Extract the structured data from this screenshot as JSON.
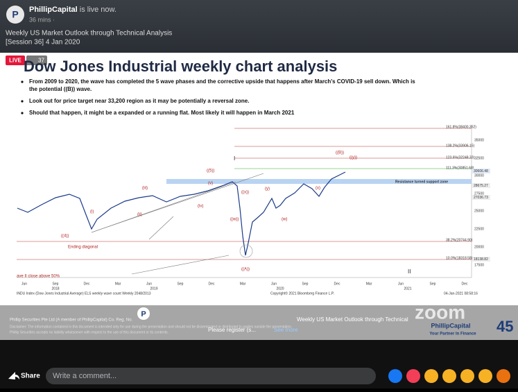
{
  "header": {
    "page_name": "PhillipCapital",
    "status": "is live now.",
    "time": "36 mins ·",
    "title": "Weekly US Market Outlook through Technical Analysis",
    "subtitle": "[Session 36] 4 Jan 2020"
  },
  "video": {
    "live": "LIVE",
    "viewers": "37"
  },
  "slide": {
    "title": "Dow Jones Industrial weekly chart analysis",
    "bullets": [
      "From 2009 to 2020, the wave has completed the 5 wave phases and the corrective upside that happens after March's COVID-19 sell down. Which is the potential ((B)) wave.",
      "Look out for price target near 33,200 region as it may be potentially a reversal zone.",
      "Should that happen, it might be a expanded or a running flat. Most likely it will happen in March 2021"
    ],
    "chart": {
      "fib_levels": [
        "161.8%(38400.352)",
        "138.2%(33906.15)",
        "123.6%(32248.33)",
        "111.3%(30851.68)",
        "38.2%(20744.90)",
        "10.0%(18318.58)"
      ],
      "price_ticks": [
        "35000",
        "32500",
        "30000",
        "27500",
        "25000",
        "22500",
        "20000",
        "17500"
      ],
      "price_tags": [
        "30606.48",
        "28675.27",
        "27036.73",
        "18138.82"
      ],
      "zone": "Resistance turned support zone",
      "wave_labels": [
        "((5))",
        "(iii)",
        "(v)",
        "(i)",
        "(ii)",
        "(iv)",
        "((4))",
        "Ending diagonal",
        "((B))",
        "((y))",
        "((x))",
        "(w)",
        "(x)",
        "((w))",
        "(y)",
        "((A))",
        "I",
        "II"
      ],
      "note": "ave II close above  50%",
      "months": [
        "Jun",
        "Sep",
        "Dec",
        "Mar",
        "Jun",
        "Sep",
        "Dec",
        "Mar",
        "Jun",
        "Sep",
        "Dec",
        "Mar",
        "Jun",
        "Sep",
        "Dec"
      ],
      "years": [
        "2018",
        "2019",
        "2020",
        "2021"
      ],
      "source": "INDU Index (Dow Jones Industrial Average) ELS weekly wave count  Weekly 2048/2013",
      "copyright": "Copyright© 2021 Bloomberg Finance L.P.",
      "timestamp": "04-Jan-2021 08:58:16"
    }
  },
  "overlay": {
    "company_line": "Phillip Securities Pte Ltd (A member of PhillipCapital) Co. Reg. No.",
    "disclaimer": "Disclaimer: The information contained in this document is intended only for use during the presentation and should not be disseminated or distributed to parties outside the presentation.",
    "disclaimer2": "Phillip Securities accepts no liability whatsoever with respect to the use of this document or its contents.",
    "ticker": "Weekly US Market Outlook through Technical",
    "register": "Please register (s...",
    "see_more": "See more",
    "zoom": "zoom",
    "brand": "PhillipCapital",
    "tagline": "Your Partner In Finance",
    "years_badge": "45"
  },
  "comment_bar": {
    "share": "Share",
    "placeholder": "Write a comment..."
  }
}
